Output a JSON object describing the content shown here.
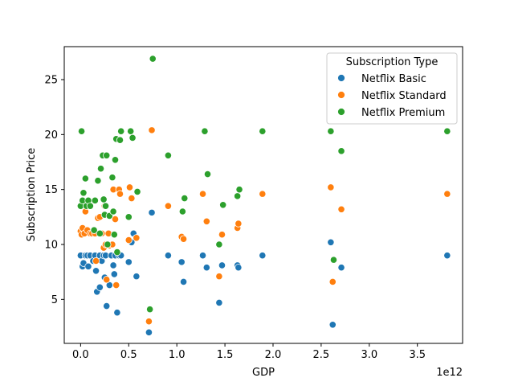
{
  "chart_data": {
    "type": "scatter",
    "xlabel": "GDP",
    "ylabel": "Subscription Price",
    "x_offset_label": "1e12",
    "xlim": [
      -0.17,
      3.97
    ],
    "ylim": [
      1.0,
      28.0
    ],
    "x_ticks": [
      "0.0",
      "0.5",
      "1.0",
      "1.5",
      "2.0",
      "2.5",
      "3.0",
      "3.5"
    ],
    "x_tick_values": [
      0.0,
      0.5,
      1.0,
      1.5,
      2.0,
      2.5,
      3.0,
      3.5
    ],
    "y_ticks": [
      "5",
      "10",
      "15",
      "20",
      "25"
    ],
    "y_tick_values": [
      5,
      10,
      15,
      20,
      25
    ],
    "grid": false,
    "legend": {
      "title": "Subscription Type",
      "placement": "top-right"
    },
    "series": [
      {
        "name": "Netflix Basic",
        "color": "#1f77b4",
        "points": [
          [
            0.0,
            9.0
          ],
          [
            0.02,
            8.0
          ],
          [
            0.03,
            8.3
          ],
          [
            0.05,
            9.0
          ],
          [
            0.07,
            9.0
          ],
          [
            0.08,
            8.0
          ],
          [
            0.1,
            9.0
          ],
          [
            0.13,
            8.5
          ],
          [
            0.15,
            9.0
          ],
          [
            0.16,
            7.6
          ],
          [
            0.17,
            5.7
          ],
          [
            0.2,
            6.1
          ],
          [
            0.2,
            9.0
          ],
          [
            0.22,
            8.5
          ],
          [
            0.24,
            9.0
          ],
          [
            0.25,
            7.0
          ],
          [
            0.26,
            9.0
          ],
          [
            0.27,
            4.4
          ],
          [
            0.3,
            6.3
          ],
          [
            0.32,
            9.0
          ],
          [
            0.34,
            8.1
          ],
          [
            0.35,
            7.3
          ],
          [
            0.36,
            9.0
          ],
          [
            0.38,
            3.8
          ],
          [
            0.4,
            9.0
          ],
          [
            0.42,
            9.0
          ],
          [
            0.5,
            8.4
          ],
          [
            0.53,
            10.2
          ],
          [
            0.55,
            11.0
          ],
          [
            0.58,
            7.1
          ],
          [
            0.71,
            2.0
          ],
          [
            0.74,
            12.9
          ],
          [
            0.91,
            9.0
          ],
          [
            1.05,
            8.4
          ],
          [
            1.07,
            6.6
          ],
          [
            1.27,
            9.0
          ],
          [
            1.31,
            7.9
          ],
          [
            1.44,
            4.7
          ],
          [
            1.47,
            8.1
          ],
          [
            1.63,
            8.1
          ],
          [
            1.64,
            7.9
          ],
          [
            1.89,
            9.0
          ],
          [
            2.6,
            10.2
          ],
          [
            2.62,
            2.7
          ],
          [
            2.71,
            7.9
          ],
          [
            3.81,
            9.0
          ]
        ]
      },
      {
        "name": "Netflix Standard",
        "color": "#ff7f0e",
        "points": [
          [
            0.0,
            11.2
          ],
          [
            0.01,
            10.9
          ],
          [
            0.02,
            11.5
          ],
          [
            0.04,
            11.0
          ],
          [
            0.05,
            13.0
          ],
          [
            0.07,
            11.3
          ],
          [
            0.08,
            13.5
          ],
          [
            0.1,
            11.0
          ],
          [
            0.12,
            11.0
          ],
          [
            0.15,
            11.0
          ],
          [
            0.16,
            8.5
          ],
          [
            0.18,
            12.4
          ],
          [
            0.2,
            12.5
          ],
          [
            0.22,
            11.0
          ],
          [
            0.24,
            9.7
          ],
          [
            0.25,
            13.5
          ],
          [
            0.26,
            10.0
          ],
          [
            0.27,
            6.8
          ],
          [
            0.29,
            11.0
          ],
          [
            0.3,
            9.9
          ],
          [
            0.33,
            10.0
          ],
          [
            0.34,
            15.0
          ],
          [
            0.36,
            12.3
          ],
          [
            0.37,
            6.3
          ],
          [
            0.4,
            15.0
          ],
          [
            0.41,
            14.6
          ],
          [
            0.5,
            10.4
          ],
          [
            0.51,
            15.2
          ],
          [
            0.53,
            14.2
          ],
          [
            0.58,
            10.6
          ],
          [
            0.71,
            3.0
          ],
          [
            0.74,
            20.4
          ],
          [
            0.91,
            13.5
          ],
          [
            1.05,
            10.7
          ],
          [
            1.07,
            10.5
          ],
          [
            1.27,
            14.6
          ],
          [
            1.31,
            12.1
          ],
          [
            1.44,
            7.1
          ],
          [
            1.47,
            10.9
          ],
          [
            1.63,
            11.5
          ],
          [
            1.64,
            11.9
          ],
          [
            1.89,
            14.6
          ],
          [
            2.6,
            15.2
          ],
          [
            2.62,
            6.6
          ],
          [
            2.71,
            13.2
          ],
          [
            3.81,
            14.6
          ]
        ]
      },
      {
        "name": "Netflix Premium",
        "color": "#2ca02c",
        "points": [
          [
            0.0,
            13.5
          ],
          [
            0.01,
            20.3
          ],
          [
            0.02,
            14.0
          ],
          [
            0.03,
            14.7
          ],
          [
            0.05,
            16.0
          ],
          [
            0.06,
            13.5
          ],
          [
            0.08,
            14.0
          ],
          [
            0.1,
            13.5
          ],
          [
            0.14,
            11.3
          ],
          [
            0.15,
            14.0
          ],
          [
            0.18,
            15.8
          ],
          [
            0.2,
            11.0
          ],
          [
            0.21,
            16.9
          ],
          [
            0.23,
            18.1
          ],
          [
            0.24,
            14.1
          ],
          [
            0.25,
            12.7
          ],
          [
            0.26,
            13.5
          ],
          [
            0.27,
            18.1
          ],
          [
            0.28,
            10.0
          ],
          [
            0.3,
            12.6
          ],
          [
            0.33,
            16.1
          ],
          [
            0.34,
            13.0
          ],
          [
            0.35,
            10.9
          ],
          [
            0.36,
            17.7
          ],
          [
            0.37,
            19.6
          ],
          [
            0.38,
            9.3
          ],
          [
            0.41,
            19.5
          ],
          [
            0.42,
            20.3
          ],
          [
            0.5,
            12.5
          ],
          [
            0.52,
            20.3
          ],
          [
            0.54,
            19.7
          ],
          [
            0.59,
            14.8
          ],
          [
            0.72,
            4.1
          ],
          [
            0.75,
            26.9
          ],
          [
            0.91,
            18.1
          ],
          [
            1.06,
            13.0
          ],
          [
            1.08,
            14.2
          ],
          [
            1.29,
            20.3
          ],
          [
            1.32,
            16.4
          ],
          [
            1.44,
            10.0
          ],
          [
            1.48,
            13.6
          ],
          [
            1.63,
            14.4
          ],
          [
            1.65,
            15.0
          ],
          [
            1.89,
            20.3
          ],
          [
            2.6,
            20.3
          ],
          [
            2.63,
            8.6
          ],
          [
            2.71,
            18.5
          ],
          [
            3.81,
            20.3
          ]
        ]
      }
    ]
  }
}
